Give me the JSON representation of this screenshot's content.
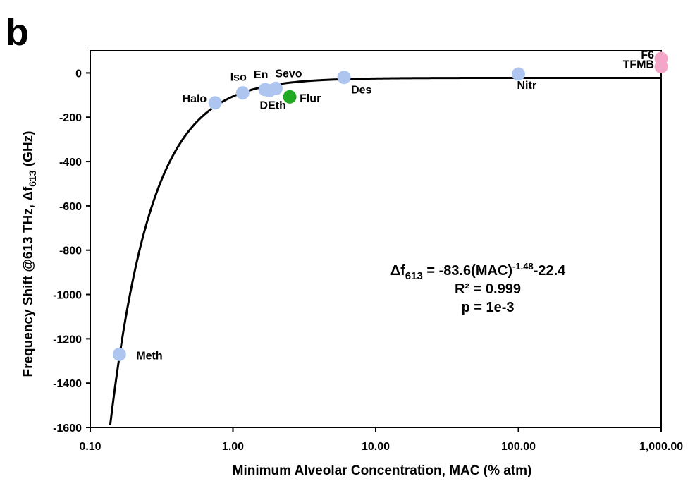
{
  "panel_label": "b",
  "chart_data": {
    "type": "scatter",
    "title": "",
    "xlabel": "Minimum  Alveolar Concentration, MAC (% atm)",
    "ylabel": {
      "pre": "Frequency Shift @613 THz, Δf",
      "sub": "613",
      "post": " (GHz)"
    },
    "x_scale": "log",
    "xlim": [
      0.1,
      1000
    ],
    "ylim": [
      -1600,
      100
    ],
    "x_ticks": [
      0.1,
      1,
      10,
      100,
      1000
    ],
    "x_tick_labels": [
      "0.10",
      "1.00",
      "10.00",
      "100.00",
      "1,000.00"
    ],
    "y_ticks": [
      0,
      -200,
      -400,
      -600,
      -800,
      -1000,
      -1200,
      -1400,
      -1600
    ],
    "y_tick_labels": [
      "0",
      "-200",
      "-400",
      "-600",
      "-800",
      "-1000",
      "-1200",
      "-1400",
      "-1600"
    ],
    "grid": false,
    "points": [
      {
        "label": "Meth",
        "x": 0.16,
        "y": -1270,
        "color": "#aec6ef"
      },
      {
        "label": "Halo",
        "x": 0.75,
        "y": -135,
        "color": "#aec6ef"
      },
      {
        "label": "Iso",
        "x": 1.17,
        "y": -90,
        "color": "#aec6ef"
      },
      {
        "label": "En",
        "x": 1.68,
        "y": -75,
        "color": "#aec6ef"
      },
      {
        "label": "DEth",
        "x": 1.8,
        "y": -80,
        "color": "#aec6ef"
      },
      {
        "label": "Sevo",
        "x": 2.0,
        "y": -70,
        "color": "#aec6ef"
      },
      {
        "label": "Flur",
        "x": 2.5,
        "y": -108,
        "color": "#22a822"
      },
      {
        "label": "Des",
        "x": 6.0,
        "y": -20,
        "color": "#aec6ef"
      },
      {
        "label": "Nitr",
        "x": 100,
        "y": -5,
        "color": "#aec6ef"
      },
      {
        "label": "F6",
        "x": 1000,
        "y": 65,
        "color": "#f4a6c8"
      },
      {
        "label": "TFMB",
        "x": 1000,
        "y": 28,
        "color": "#f4a6c8"
      }
    ],
    "fit": {
      "equation": {
        "pre": "Δf",
        "sub": "613",
        "mid": " = -83.6(MAC)",
        "sup": "-1.48",
        "post": "-22.4"
      },
      "r_squared": "R² = 0.999",
      "p_value": "p = 1e-3",
      "a": -83.6,
      "b": -1.48,
      "c": -22.4,
      "color": "#000000"
    }
  }
}
